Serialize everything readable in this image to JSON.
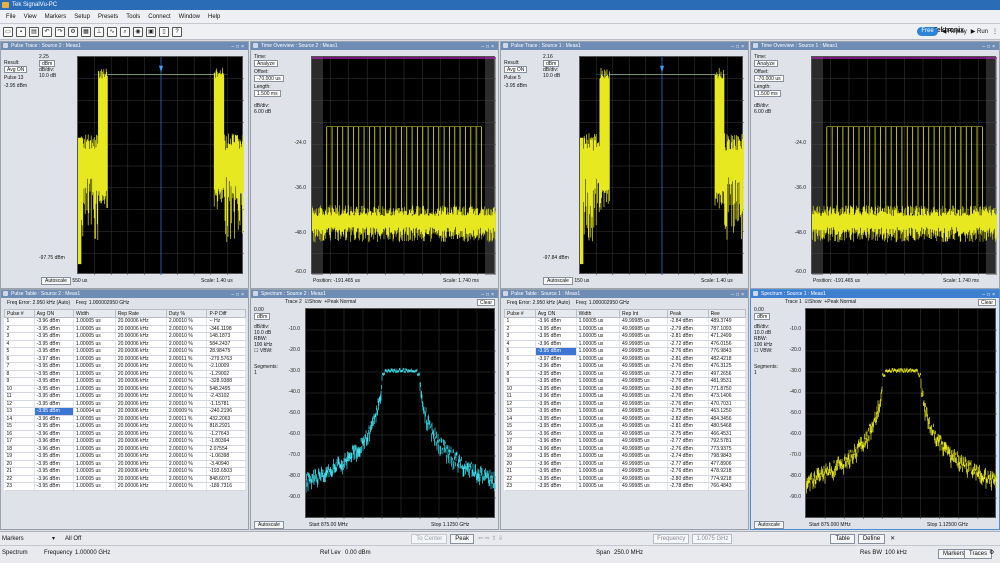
{
  "app": {
    "title": "Tek SignalVu-PC",
    "brand": "Tektronix",
    "mode": "Free",
    "replay": "Replay",
    "run": "Run"
  },
  "menu": [
    "File",
    "View",
    "Markers",
    "Setup",
    "Presets",
    "Tools",
    "Connect",
    "Window",
    "Help"
  ],
  "toolbar_icons": [
    "open-icon",
    "save-icon",
    "print-icon",
    "undo-icon",
    "redo-icon",
    "settings-icon",
    "acquire-icon",
    "marker-icon",
    "trace-icon",
    "zoom-icon",
    "camera-icon",
    "display-icon",
    "lock-icon",
    "help-icon"
  ],
  "panels": {
    "pulse_trace_1": {
      "title": "Pulse Trace : Source 2 : Meas1",
      "result_label": "Result:",
      "result": "Avg ON",
      "unit_val": "2.25",
      "unit": "dBm",
      "pulse_label": "Pulse",
      "pulse": "13",
      "dbdiv_label": "dB/div:",
      "dbdiv": "10.0 dB",
      "level": "-3.95 dBm",
      "bottom": "-97.75 dBm",
      "autoscale": "Autoscale",
      "pos": "550 us",
      "scale_label": "Scale:",
      "scale": "1.40 us"
    },
    "time_overview_1": {
      "title": "Time Overview : Source 2 : Meas1",
      "time_label": "Time:",
      "time": "Analyze",
      "offset_label": "Offset:",
      "offset": "-70.000 us",
      "length_label": "Length:",
      "length": "1.500 ms",
      "dbdiv_label": "dB/div:",
      "dbdiv": "6.00 dB",
      "yticks": [
        "-24.0",
        "-36.0",
        "-48.0",
        "-60.0"
      ],
      "pos_label": "Position:",
      "pos": "-191.465 us",
      "scale_label": "Scale:",
      "scale": "1.740 ms"
    },
    "pulse_trace_2": {
      "title": "Pulse Trace : Source 1 : Meas1",
      "result_label": "Result:",
      "result": "Avg ON",
      "unit_val": "2.16",
      "unit": "dBm",
      "pulse_label": "Pulse",
      "pulse": "5",
      "dbdiv_label": "dB/div:",
      "dbdiv": "10.0 dB",
      "level": "-3.95 dBm",
      "bottom": "-97.84 dBm",
      "autoscale": "Autoscale",
      "pos": "150 us",
      "scale_label": "Scale:",
      "scale": "1.40 us"
    },
    "time_overview_2": {
      "title": "Time Overview : Source 1 : Meas1",
      "time_label": "Time:",
      "time": "Analyze",
      "offset_label": "Offset:",
      "offset": "-70.000 us",
      "length_label": "Length:",
      "length": "1.500 ms",
      "dbdiv_label": "dB/div:",
      "dbdiv": "6.00 dB",
      "yticks": [
        "-24.0",
        "-36.0",
        "-48.0",
        "-60.0"
      ],
      "pos_label": "Position:",
      "pos": "-191.465 us",
      "scale_label": "Scale:",
      "scale": "1.740 ms"
    },
    "pulse_table_1": {
      "title": "Pulse Table : Source 2 : Meas1",
      "freq_error": "Freq Error: 2.950 kHz (Auto)",
      "freq": "Freq: 1.000002950 GHz",
      "columns": [
        "Pulse #",
        "Avg ON",
        "Width",
        "Rep Rate",
        "Duty %",
        "P-P Diff"
      ],
      "rows": [
        [
          "1",
          "-3.96 dBm",
          "1.00005 us",
          "20.00006 kHz",
          "2.00010 %",
          "-- Hz"
        ],
        [
          "2",
          "-3.95 dBm",
          "1.00005 us",
          "20.00006 kHz",
          "2.00010 %",
          "-346.1198"
        ],
        [
          "3",
          "-3.95 dBm",
          "1.00005 us",
          "20.00006 kHz",
          "2.00010 %",
          "148.1873"
        ],
        [
          "4",
          "-3.95 dBm",
          "1.00005 us",
          "20.00006 kHz",
          "2.00010 %",
          "584.2437"
        ],
        [
          "5",
          "-3.95 dBm",
          "1.00005 us",
          "20.00006 kHz",
          "2.00010 %",
          "28.98475"
        ],
        [
          "6",
          "-3.97 dBm",
          "1.00005 us",
          "20.00006 kHz",
          "2.00011 %",
          "-279.5763"
        ],
        [
          "7",
          "-3.95 dBm",
          "1.00005 us",
          "20.00006 kHz",
          "2.00010 %",
          "-2.10009"
        ],
        [
          "8",
          "-3.95 dBm",
          "1.00005 us",
          "20.00006 kHz",
          "2.00010 %",
          "-1.29002"
        ],
        [
          "9",
          "-3.95 dBm",
          "1.00005 us",
          "20.00006 kHz",
          "2.00010 %",
          "-328.9388"
        ],
        [
          "10",
          "-3.95 dBm",
          "1.00005 us",
          "20.00006 kHz",
          "2.00010 %",
          "548.2495"
        ],
        [
          "11",
          "-3.95 dBm",
          "1.00005 us",
          "20.00006 kHz",
          "2.00010 %",
          "-2.43102"
        ],
        [
          "12",
          "-3.95 dBm",
          "1.00005 us",
          "20.00006 kHz",
          "2.00010 %",
          "-1.15781"
        ],
        [
          "13",
          "-3.95 dBm",
          "1.00004 us",
          "20.00006 kHz",
          "2.00009 %",
          "-240.2196"
        ],
        [
          "14",
          "-3.96 dBm",
          "1.00005 us",
          "20.00006 kHz",
          "2.00011 %",
          "432.2063"
        ],
        [
          "15",
          "-3.95 dBm",
          "1.00005 us",
          "20.00006 kHz",
          "2.00010 %",
          "818.2921"
        ],
        [
          "16",
          "-3.96 dBm",
          "1.00005 us",
          "20.00006 kHz",
          "2.00010 %",
          "-1.27643"
        ],
        [
          "17",
          "-3.96 dBm",
          "1.00005 us",
          "20.00006 kHz",
          "2.00010 %",
          "-1.80394"
        ],
        [
          "18",
          "-3.96 dBm",
          "1.00005 us",
          "20.00006 kHz",
          "2.00010 %",
          "2.07554"
        ],
        [
          "19",
          "-3.95 dBm",
          "1.00005 us",
          "20.00006 kHz",
          "2.00010 %",
          "-1.06398"
        ],
        [
          "20",
          "-3.95 dBm",
          "1.00005 us",
          "20.00006 kHz",
          "2.00010 %",
          "-3.40940"
        ],
        [
          "21",
          "-3.95 dBm",
          "1.00005 us",
          "20.00006 kHz",
          "2.00010 %",
          "-193.6503"
        ],
        [
          "22",
          "-3.96 dBm",
          "1.00005 us",
          "20.00006 kHz",
          "2.00010 %",
          "848.6071"
        ],
        [
          "23",
          "-3.95 dBm",
          "1.00005 us",
          "20.00006 kHz",
          "2.00010 %",
          "-189.7316"
        ]
      ],
      "selected_row": 12
    },
    "spectrum_1": {
      "title": "Spectrum : Source 2 : Meas1",
      "trace": "Trace 2",
      "show": "Show",
      "detector": "+Peak Normal",
      "clear": "Clear",
      "top": "0.00",
      "unit": "dBm",
      "dbdiv_label": "dB/div:",
      "dbdiv": "10.0 dB",
      "rbw_label": "RBW:",
      "rbw": "100 kHz",
      "vbw": "VBW:",
      "segments_label": "Segments:",
      "segments": "1",
      "yticks": [
        "-10.0",
        "-20.0",
        "-30.0",
        "-40.0",
        "-50.0",
        "-60.0",
        "-70.0",
        "-80.0",
        "-90.0"
      ],
      "autoscale": "Autoscale",
      "start_label": "Start",
      "start": "875.00 MHz",
      "stop_label": "Stop",
      "stop": "1.1250 GHz"
    },
    "pulse_table_2": {
      "title": "Pulse Table : Source 1 : Meas1",
      "freq_error": "Freq Error: 2.950 kHz (Auto)",
      "freq": "Freq: 1.000002950 GHz",
      "columns": [
        "Pulse #",
        "Avg ON",
        "Width",
        "Rep Int",
        "Peak",
        "Ree"
      ],
      "rows": [
        [
          "1",
          "-3.96 dBm",
          "1.00005 us",
          "49.99985 us",
          "-2.84 dBm",
          "489.3749"
        ],
        [
          "2",
          "-3.95 dBm",
          "1.00005 us",
          "49.99985 us",
          "-2.79 dBm",
          "787.1093"
        ],
        [
          "3",
          "-3.95 dBm",
          "1.00005 us",
          "49.99985 us",
          "-2.81 dBm",
          "471.2499"
        ],
        [
          "4",
          "-3.96 dBm",
          "1.00005 us",
          "49.99985 us",
          "-2.72 dBm",
          "476.0156"
        ],
        [
          "5",
          "-3.95 dBm",
          "1.00005 us",
          "49.99985 us",
          "-2.76 dBm",
          "776.9843"
        ],
        [
          "6",
          "-3.97 dBm",
          "1.00005 us",
          "49.99985 us",
          "-2.81 dBm",
          "482.4218"
        ],
        [
          "7",
          "-3.96 dBm",
          "1.00005 us",
          "49.99985 us",
          "-2.76 dBm",
          "476.3125"
        ],
        [
          "8",
          "-3.95 dBm",
          "1.00005 us",
          "49.99985 us",
          "-2.73 dBm",
          "497.2656"
        ],
        [
          "9",
          "-3.95 dBm",
          "1.00005 us",
          "49.99985 us",
          "-2.76 dBm",
          "481.9531"
        ],
        [
          "10",
          "-3.95 dBm",
          "1.00005 us",
          "49.99985 us",
          "-2.80 dBm",
          "771.8750"
        ],
        [
          "11",
          "-3.96 dBm",
          "1.00005 us",
          "49.99985 us",
          "-2.76 dBm",
          "473.1406"
        ],
        [
          "12",
          "-3.95 dBm",
          "1.00005 us",
          "49.99985 us",
          "-2.76 dBm",
          "470.7031"
        ],
        [
          "13",
          "-3.95 dBm",
          "1.00005 us",
          "49.99985 us",
          "-2.75 dBm",
          "463.1250"
        ],
        [
          "14",
          "-3.95 dBm",
          "1.00005 us",
          "49.99985 us",
          "-2.82 dBm",
          "484.3456"
        ],
        [
          "15",
          "-3.95 dBm",
          "1.00005 us",
          "49.99985 us",
          "-2.81 dBm",
          "480.5468"
        ],
        [
          "16",
          "-3.96 dBm",
          "1.00005 us",
          "49.99985 us",
          "-2.75 dBm",
          "466.4531"
        ],
        [
          "17",
          "-3.96 dBm",
          "1.00005 us",
          "49.99985 us",
          "-2.77 dBm",
          "792.5781"
        ],
        [
          "18",
          "-3.96 dBm",
          "1.00005 us",
          "49.99985 us",
          "-2.76 dBm",
          "773.9375"
        ],
        [
          "19",
          "-3.95 dBm",
          "1.00005 us",
          "49.99985 us",
          "-2.74 dBm",
          "798.9843"
        ],
        [
          "20",
          "-3.96 dBm",
          "1.00005 us",
          "49.99985 us",
          "-2.77 dBm",
          "477.8906"
        ],
        [
          "21",
          "-3.95 dBm",
          "1.00005 us",
          "49.99985 us",
          "-2.76 dBm",
          "478.9218"
        ],
        [
          "22",
          "-3.95 dBm",
          "1.00005 us",
          "49.99985 us",
          "-2.80 dBm",
          "774.9218"
        ],
        [
          "23",
          "-3.95 dBm",
          "1.00005 us",
          "49.99985 us",
          "-2.78 dBm",
          "766.4843"
        ]
      ],
      "selected_row": 4
    },
    "spectrum_2": {
      "title": "Spectrum : Source 1 : Meas1",
      "trace": "Trace 1",
      "show": "Show",
      "detector": "+Peak Normal",
      "clear": "Clear",
      "top": "0.00",
      "unit": "dBm",
      "dbdiv_label": "dB/div:",
      "dbdiv": "10.0 dB",
      "rbw_label": "RBW:",
      "rbw": "100 kHz",
      "vbw": "VBW:",
      "segments_label": "Segments:",
      "segments": "1",
      "yticks": [
        "-10.0",
        "-20.0",
        "-30.0",
        "-40.0",
        "-50.0",
        "-60.0",
        "-70.0",
        "-80.0",
        "-90.0"
      ],
      "autoscale": "Autoscale",
      "start_label": "Start",
      "start": "875.000 MHz",
      "stop_label": "Stop",
      "stop": "1.12500 GHz"
    }
  },
  "status": {
    "markers_label": "Markers",
    "markers": "All Off",
    "to_center": "To Center",
    "peak": "Peak",
    "freq_field": "Frequency",
    "freq_value": "1.0075 GHz",
    "table": "Table",
    "define": "Define",
    "spectrum": "Spectrum",
    "frequency_label": "Frequency",
    "frequency": "1.00000 GHz",
    "reflev_label": "Ref Lev",
    "reflev": "0.00 dBm",
    "span_label": "Span",
    "span": "250.0 MHz",
    "resbw_label": "Res BW",
    "resbw": "100 kHz",
    "markers_btn": "Markers",
    "traces_btn": "Traces"
  },
  "colors": {
    "trace_yellow": "#e8e820",
    "trace_cyan": "#40e0f0",
    "grid": "#3a3a3a",
    "header": "#6e8cb4",
    "select": "#3c76d2"
  }
}
